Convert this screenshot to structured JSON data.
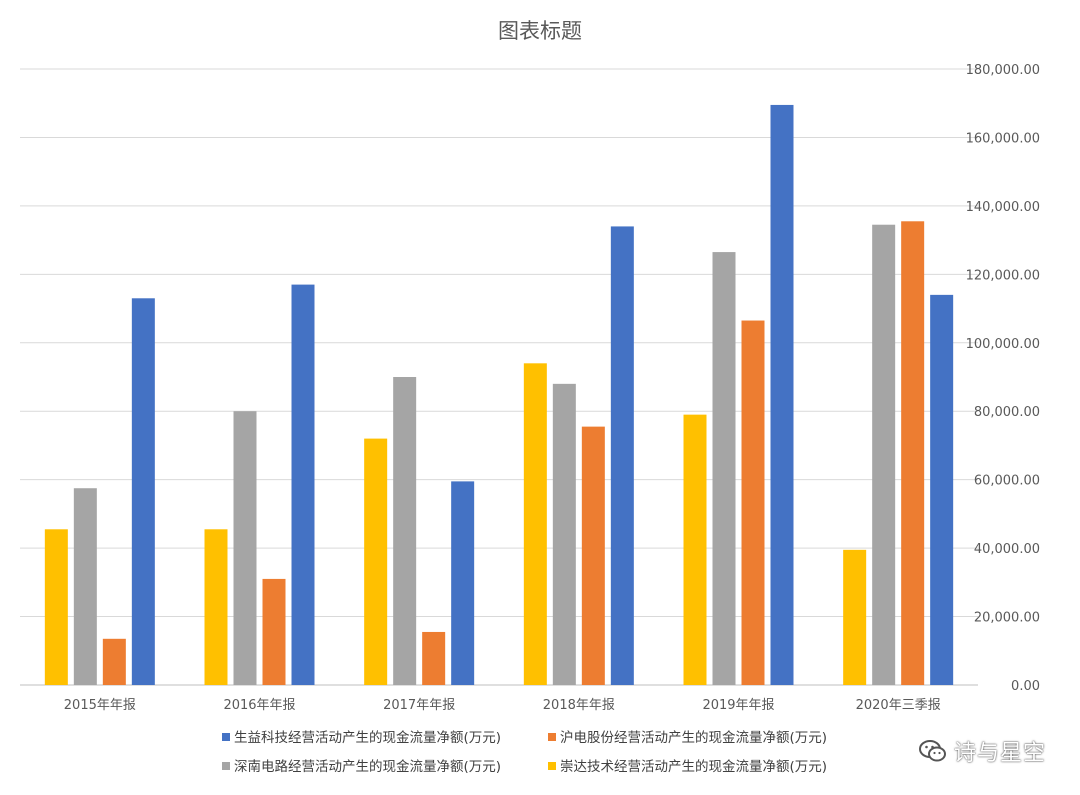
{
  "chart_data": {
    "type": "bar",
    "title": "图表标题",
    "categories": [
      "2015年年报",
      "2016年年报",
      "2017年年报",
      "2018年年报",
      "2019年年报",
      "2020年三季报"
    ],
    "series": [
      {
        "name": "崇达技术经营活动产生的现金流量净额(万元)",
        "color": "#FFC000",
        "values": [
          45500,
          45500,
          72000,
          94000,
          79000,
          39500
        ]
      },
      {
        "name": "深南电路经营活动产生的现金流量净额(万元)",
        "color": "#A5A5A5",
        "values": [
          57500,
          80000,
          90000,
          88000,
          126500,
          134500
        ]
      },
      {
        "name": "沪电股份经营活动产生的现金流量净额(万元)",
        "color": "#ED7D31",
        "values": [
          13500,
          31000,
          15500,
          75500,
          106500,
          135500
        ]
      },
      {
        "name": "生益科技经营活动产生的现金流量净额(万元)",
        "color": "#4472C4",
        "values": [
          113000,
          117000,
          59500,
          134000,
          169500,
          114000
        ]
      }
    ],
    "yticks": [
      "0.00",
      "20,000.00",
      "40,000.00",
      "60,000.00",
      "80,000.00",
      "100,000.00",
      "120,000.00",
      "140,000.00",
      "160,000.00",
      "180,000.00"
    ],
    "ylim": [
      0,
      180000
    ],
    "ystep": 20000,
    "y_axis_side": "right",
    "grid": true,
    "legend_position": "bottom",
    "legend_order": [
      3,
      2,
      1,
      0
    ]
  },
  "watermark": {
    "text": "诗与星空",
    "icon": "wechat-icon"
  }
}
